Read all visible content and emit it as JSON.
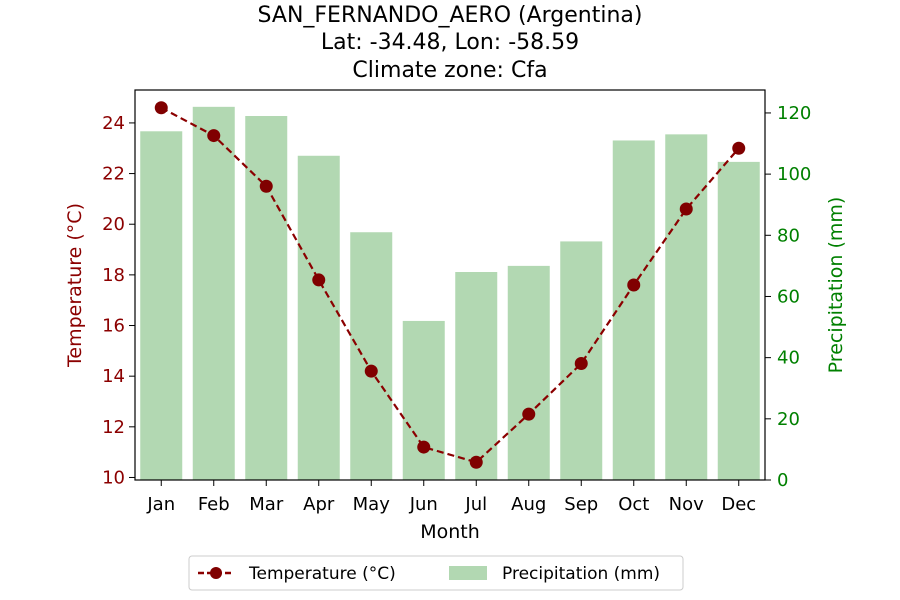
{
  "colors": {
    "temperature": "#8b0000",
    "temperature_marker": "#800000",
    "precipitation_bar": "#b2d8b2",
    "precip_axis": "#008000",
    "temp_axis": "#8b0000"
  },
  "chart_data": {
    "type": "bar",
    "title_lines": [
      "SAN_FERNANDO_AERO (Argentina)",
      "Lat: -34.48, Lon: -58.59",
      "Climate zone: Cfa"
    ],
    "xlabel": "Month",
    "ylabel_left": "Temperature (°C)",
    "ylabel_right": "Precipitation (mm)",
    "categories": [
      "Jan",
      "Feb",
      "Mar",
      "Apr",
      "May",
      "Jun",
      "Jul",
      "Aug",
      "Sep",
      "Oct",
      "Nov",
      "Dec"
    ],
    "series": [
      {
        "name": "Precipitation (mm)",
        "type": "bar",
        "axis": "right",
        "values": [
          114,
          122,
          119,
          106,
          81,
          52,
          68,
          70,
          78,
          111,
          113,
          104
        ]
      },
      {
        "name": "Temperature (°C)",
        "type": "line",
        "axis": "left",
        "style": "dashed",
        "values": [
          24.6,
          23.5,
          21.5,
          17.8,
          14.2,
          11.2,
          10.6,
          12.5,
          14.5,
          17.6,
          20.6,
          23.0
        ]
      }
    ],
    "ylim_left": [
      9.9,
      25.3
    ],
    "yticks_left": [
      10,
      12,
      14,
      16,
      18,
      20,
      22,
      24
    ],
    "ylim_right": [
      0,
      127.5
    ],
    "yticks_right": [
      0,
      20,
      40,
      60,
      80,
      100,
      120
    ],
    "grid": false,
    "legend_position": "bottom-center"
  }
}
